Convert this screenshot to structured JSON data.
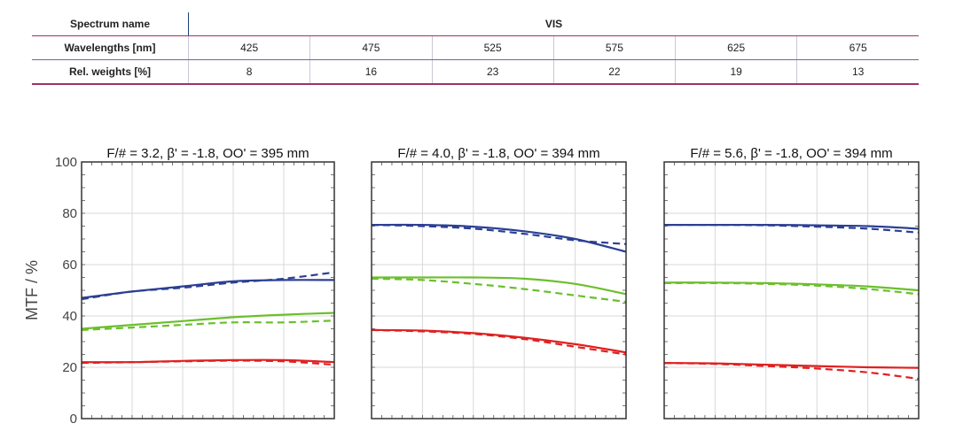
{
  "table": {
    "spectrum_label": "Spectrum name",
    "spectrum_value": "VIS",
    "wavelength_label": "Wavelengths [nm]",
    "wavelengths": [
      "425",
      "475",
      "525",
      "575",
      "625",
      "675"
    ],
    "weight_label": "Rel. weights [%]",
    "weights": [
      "8",
      "16",
      "23",
      "22",
      "19",
      "13"
    ]
  },
  "chart_data": [
    {
      "type": "line",
      "title": "F/# = 3.2, β' = -1.8, OO' = 395 mm",
      "ylabel": "MTF / %",
      "ylim": [
        0,
        100
      ],
      "xlim": [
        0,
        1
      ],
      "yticks": [
        "0",
        "20",
        "40",
        "60",
        "80",
        "100"
      ],
      "grid": true,
      "series": [
        {
          "color": "#2b3f94",
          "style": "solid",
          "x": [
            0,
            0.2,
            0.4,
            0.6,
            0.8,
            1
          ],
          "y": [
            47,
            49.5,
            51.5,
            53.5,
            54,
            54
          ]
        },
        {
          "color": "#2b3f94",
          "style": "dashed",
          "x": [
            0,
            0.2,
            0.4,
            0.6,
            0.8,
            1
          ],
          "y": [
            46.5,
            49.5,
            51,
            53,
            54.5,
            57
          ]
        },
        {
          "color": "#6bbf2c",
          "style": "solid",
          "x": [
            0,
            0.2,
            0.4,
            0.6,
            0.8,
            1
          ],
          "y": [
            35,
            36.5,
            38,
            39.5,
            40.5,
            41.2
          ]
        },
        {
          "color": "#6bbf2c",
          "style": "dashed",
          "x": [
            0,
            0.2,
            0.4,
            0.6,
            0.8,
            1
          ],
          "y": [
            34.5,
            35.5,
            36.5,
            37.5,
            37.5,
            38.2
          ]
        },
        {
          "color": "#e02020",
          "style": "solid",
          "x": [
            0,
            0.2,
            0.4,
            0.6,
            0.8,
            1
          ],
          "y": [
            22,
            22,
            22.5,
            22.8,
            22.8,
            22
          ]
        },
        {
          "color": "#e02020",
          "style": "dashed",
          "x": [
            0,
            0.2,
            0.4,
            0.6,
            0.8,
            1
          ],
          "y": [
            21.7,
            22,
            22.3,
            22.6,
            22.3,
            21
          ]
        }
      ]
    },
    {
      "type": "line",
      "title": "F/# = 4.0, β' = -1.8, OO' = 394 mm",
      "ylim": [
        0,
        100
      ],
      "xlim": [
        0,
        1
      ],
      "grid": true,
      "series": [
        {
          "color": "#2b3f94",
          "style": "solid",
          "x": [
            0,
            0.2,
            0.4,
            0.6,
            0.8,
            1
          ],
          "y": [
            75.5,
            75.5,
            74.8,
            73,
            70,
            65
          ]
        },
        {
          "color": "#2b3f94",
          "style": "dashed",
          "x": [
            0,
            0.2,
            0.4,
            0.6,
            0.8,
            1
          ],
          "y": [
            75.5,
            75,
            74,
            72,
            69.5,
            68
          ]
        },
        {
          "color": "#6bbf2c",
          "style": "solid",
          "x": [
            0,
            0.2,
            0.4,
            0.6,
            0.8,
            1
          ],
          "y": [
            55,
            55,
            55,
            54.5,
            52.5,
            48.5
          ]
        },
        {
          "color": "#6bbf2c",
          "style": "dashed",
          "x": [
            0,
            0.2,
            0.4,
            0.6,
            0.8,
            1
          ],
          "y": [
            54.5,
            54,
            52.5,
            50.5,
            48,
            45.5
          ]
        },
        {
          "color": "#e02020",
          "style": "solid",
          "x": [
            0,
            0.2,
            0.4,
            0.6,
            0.8,
            1
          ],
          "y": [
            34.5,
            34.3,
            33.3,
            31.5,
            29,
            25.8
          ]
        },
        {
          "color": "#e02020",
          "style": "dashed",
          "x": [
            0,
            0.2,
            0.4,
            0.6,
            0.8,
            1
          ],
          "y": [
            34.5,
            34,
            33,
            31,
            28,
            25
          ]
        }
      ]
    },
    {
      "type": "line",
      "title": "F/# = 5.6, β' = -1.8, OO' = 394 mm",
      "ylim": [
        0,
        100
      ],
      "xlim": [
        0,
        1
      ],
      "grid": true,
      "series": [
        {
          "color": "#2b3f94",
          "style": "solid",
          "x": [
            0,
            0.2,
            0.4,
            0.6,
            0.8,
            1
          ],
          "y": [
            75.5,
            75.5,
            75.5,
            75.3,
            75,
            74
          ]
        },
        {
          "color": "#2b3f94",
          "style": "dashed",
          "x": [
            0,
            0.2,
            0.4,
            0.6,
            0.8,
            1
          ],
          "y": [
            75.5,
            75.5,
            75.3,
            74.8,
            74,
            72.5
          ]
        },
        {
          "color": "#6bbf2c",
          "style": "solid",
          "x": [
            0,
            0.2,
            0.4,
            0.6,
            0.8,
            1
          ],
          "y": [
            53,
            53,
            52.8,
            52.3,
            51.5,
            50
          ]
        },
        {
          "color": "#6bbf2c",
          "style": "dashed",
          "x": [
            0,
            0.2,
            0.4,
            0.6,
            0.8,
            1
          ],
          "y": [
            52.8,
            52.8,
            52.5,
            51.8,
            50.5,
            48.5
          ]
        },
        {
          "color": "#e02020",
          "style": "solid",
          "x": [
            0,
            0.2,
            0.4,
            0.6,
            0.8,
            1
          ],
          "y": [
            21.7,
            21.5,
            21,
            20.5,
            20,
            19.8
          ]
        },
        {
          "color": "#e02020",
          "style": "dashed",
          "x": [
            0,
            0.2,
            0.4,
            0.6,
            0.8,
            1
          ],
          "y": [
            21.7,
            21.3,
            20.5,
            19.5,
            18,
            15.5
          ]
        }
      ]
    }
  ]
}
